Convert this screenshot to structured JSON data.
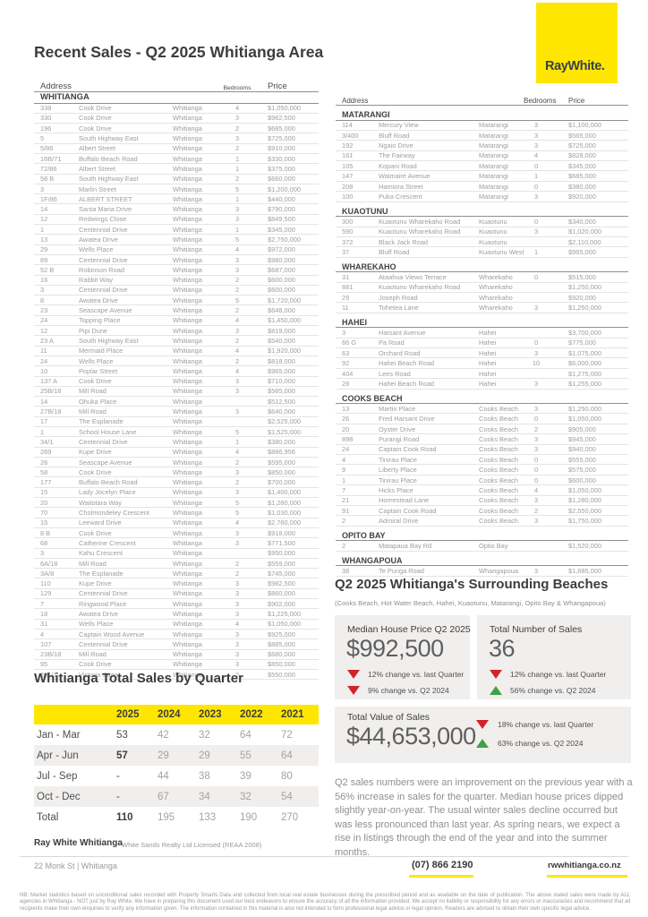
{
  "brand": {
    "logo_text": "RayWhite.",
    "yellow": "#ffe600",
    "red": "#d2232a",
    "green": "#41a048"
  },
  "header": {
    "title": "Recent Sales - Q2 2025 Whitianga Area"
  },
  "sales_table": {
    "headers": {
      "address": "Address",
      "bedrooms": "Bedrooms",
      "price": "Price"
    },
    "left_sections": [
      {
        "name": "WHITIANGA",
        "rows": [
          [
            "338",
            "Cook Drive",
            "Whitianga",
            "4",
            "$1,050,000"
          ],
          [
            "330",
            "Cook Drive",
            "Whitianga",
            "3",
            "$962,500"
          ],
          [
            "196",
            "Cook Drive",
            "Whitianga",
            "2",
            "$685,000"
          ],
          [
            "5",
            "South Highway East",
            "Whitianga",
            "3",
            "$725,000"
          ],
          [
            "5/86",
            "Albert Street",
            "Whitianga",
            "2",
            "$910,000"
          ],
          [
            "16B/71",
            "Buffalo Beach Road",
            "Whitianga",
            "1",
            "$330,000"
          ],
          [
            "72/86",
            "Albert Street",
            "Whitianga",
            "1",
            "$375,000"
          ],
          [
            "58 B",
            "South Highway East",
            "Whitianga",
            "2",
            "$660,000"
          ],
          [
            "3",
            "Marlin Street",
            "Whitianga",
            "5",
            "$1,200,000"
          ],
          [
            "1F/86",
            "ALBERT STREET",
            "Whitianga",
            "1",
            "$440,000"
          ],
          [
            "14",
            "Santa Maria Drive",
            "Whitianga",
            "3",
            "$790,000"
          ],
          [
            "12",
            "Redwings Close",
            "Whitianga",
            "3",
            "$849,500"
          ],
          [
            "1",
            "Centennial Drive",
            "Whitianga",
            "1",
            "$345,000"
          ],
          [
            "13",
            "Awatea Drive",
            "Whitianga",
            "5",
            "$2,750,000"
          ],
          [
            "29",
            "Wells Place",
            "Whitianga",
            "4",
            "$972,000"
          ],
          [
            "89",
            "Centennial Drive",
            "Whitianga",
            "3",
            "$980,000"
          ],
          [
            "52 B",
            "Robinson Road",
            "Whitianga",
            "3",
            "$687,000"
          ],
          [
            "16",
            "Rabbit Way",
            "Whitianga",
            "2",
            "$600,000"
          ],
          [
            "3",
            "Centennial Drive",
            "Whitianga",
            "2",
            "$600,000"
          ],
          [
            "8",
            "Awatea Drive",
            "Whitianga",
            "5",
            "$1,720,000"
          ],
          [
            "23",
            "Seascape Avenue",
            "Whitianga",
            "2",
            "$648,000"
          ],
          [
            "24",
            "Topping Place",
            "Whitianga",
            "4",
            "$1,450,000"
          ],
          [
            "12",
            "Pipi Dune",
            "Whitianga",
            "3",
            "$819,000"
          ],
          [
            "23 A",
            "South Highway East",
            "Whitianga",
            "2",
            "$540,000"
          ],
          [
            "11",
            "Mermaid Place",
            "Whitianga",
            "4",
            "$1,920,000"
          ],
          [
            "24",
            "Wells Place",
            "Whitianga",
            "2",
            "$818,000"
          ],
          [
            "10",
            "Poplar Street",
            "Whitianga",
            "4",
            "$965,000"
          ],
          [
            "137 A",
            "Cook Drive",
            "Whitianga",
            "3",
            "$710,000"
          ],
          [
            "25B/18",
            "Mill Road",
            "Whitianga",
            "3",
            "$585,000"
          ],
          [
            "14",
            "Ohuka Place",
            "Whitianga",
            "",
            "$512,500"
          ],
          [
            "27B/18",
            "Mill Road",
            "Whitianga",
            "3",
            "$640,000"
          ],
          [
            "17",
            "The Esplanade",
            "Whitianga",
            "",
            "$2,525,000"
          ],
          [
            "1",
            "School House Lane",
            "Whitianga",
            "5",
            "$1,525,000"
          ],
          [
            "34/1",
            "Centennial Drive",
            "Whitianga",
            "1",
            "$380,000"
          ],
          [
            "269",
            "Kupe Drive",
            "Whitianga",
            "4",
            "$886,956"
          ],
          [
            "26",
            "Seascape Avenue",
            "Whitianga",
            "2",
            "$595,000"
          ],
          [
            "58",
            "Cook Drive",
            "Whitianga",
            "3",
            "$850,000"
          ],
          [
            "177",
            "Buffalo Beach Road",
            "Whitianga",
            "2",
            "$700,000"
          ],
          [
            "15",
            "Lady Jocelyn Place",
            "Whitianga",
            "3",
            "$1,400,000"
          ],
          [
            "20",
            "Waitotara Way",
            "Whitianga",
            "5",
            "$1,280,000"
          ],
          [
            "70",
            "Cholmondeley Crescent",
            "Whitianga",
            "5",
            "$1,030,000"
          ],
          [
            "15",
            "Leeward Drive",
            "Whitianga",
            "4",
            "$2,760,000"
          ],
          [
            "8 B",
            "Cook Drive",
            "Whitianga",
            "3",
            "$918,000"
          ],
          [
            "68",
            "Catherine Crescent",
            "Whitianga",
            "3",
            "$771,500"
          ],
          [
            "3",
            "Kahu Crescent",
            "Whitianga",
            "",
            "$950,000"
          ],
          [
            "6A/18",
            "Mill Road",
            "Whitianga",
            "2",
            "$559,000"
          ],
          [
            "3A/8",
            "The Esplanade",
            "Whitianga",
            "2",
            "$745,000"
          ],
          [
            "110",
            "Kupe Drive",
            "Whitianga",
            "3",
            "$982,500"
          ],
          [
            "129",
            "Centennial Drive",
            "Whitianga",
            "3",
            "$860,000"
          ],
          [
            "7",
            "Ringwood Place",
            "Whitianga",
            "3",
            "$902,000"
          ],
          [
            "18",
            "Awatea Drive",
            "Whitianga",
            "3",
            "$1,225,000"
          ],
          [
            "31",
            "Wells Place",
            "Whitianga",
            "4",
            "$1,050,000"
          ],
          [
            "4",
            "Captain Wood Avenue",
            "Whitianga",
            "3",
            "$925,000"
          ],
          [
            "107",
            "Centennial Drive",
            "Whitianga",
            "3",
            "$885,000"
          ],
          [
            "23B/18",
            "Mill Road",
            "Whitianga",
            "3",
            "$680,000"
          ],
          [
            "95",
            "Cook Drive",
            "Whitianga",
            "3",
            "$850,000"
          ],
          [
            "201/1",
            "Victoria Street",
            "Whitianga",
            "2",
            "$550,000"
          ]
        ]
      }
    ],
    "right_sections": [
      {
        "name": "MATARANGI",
        "rows": [
          [
            "114",
            "Mercury View",
            "Matarangi",
            "3",
            "$1,100,000"
          ],
          [
            "3/400",
            "Bluff Road",
            "Matarangi",
            "3",
            "$565,000"
          ],
          [
            "192",
            "Ngaio Drive",
            "Matarangi",
            "3",
            "$725,000"
          ],
          [
            "161",
            "The Fairway",
            "Matarangi",
            "4",
            "$828,000"
          ],
          [
            "105",
            "Kopani Road",
            "Matarangi",
            "0",
            "$345,000"
          ],
          [
            "147",
            "Waimaire Avenue",
            "Matarangi",
            "1",
            "$685,000"
          ],
          [
            "208",
            "Hamiora Street",
            "Matarangi",
            "0",
            "$380,000"
          ],
          [
            "100",
            "Puka Crescent",
            "Matarangi",
            "3",
            "$920,000"
          ]
        ]
      },
      {
        "name": "KUAOTUNU",
        "rows": [
          [
            "300",
            "Kuaotunu Wharekaho Road",
            "Kuaotunu",
            "0",
            "$340,000"
          ],
          [
            "590",
            "Kuaotunu Wharekaho Road",
            "Kuaotunu",
            "3",
            "$1,020,000"
          ],
          [
            "372",
            "Black Jack Road",
            "Kuaotunu",
            "",
            "$2,110,000"
          ],
          [
            "37",
            "Bluff Road",
            "Kuaotunu West",
            "1",
            "$965,000"
          ]
        ]
      },
      {
        "name": "WHAREKAHO",
        "rows": [
          [
            "31",
            "Ataahua Views Terrace",
            "Wharekaho",
            "0",
            "$515,000"
          ],
          [
            "881",
            "Kuaotunu Wharekaho Road",
            "Wharekaho",
            "",
            "$1,250,000"
          ],
          [
            "29",
            "Joseph Road",
            "Wharekaho",
            "",
            "$920,000"
          ],
          [
            "11",
            "Tohetea Lane",
            "Wharekaho",
            "3",
            "$1,250,000"
          ]
        ]
      },
      {
        "name": "HAHEI",
        "rows": [
          [
            "3",
            "Harsant Avenue",
            "Hahei",
            "",
            "$3,700,000"
          ],
          [
            "66 G",
            "Pa Road",
            "Hahei",
            "0",
            "$775,000"
          ],
          [
            "63",
            "Orchard Road",
            "Hahei",
            "3",
            "$1,075,000"
          ],
          [
            "92",
            "Hahei Beach Road",
            "Hahei",
            "10",
            "$6,000,000"
          ],
          [
            "404",
            "Lees Road",
            "Hahei",
            "",
            "$1,275,000"
          ],
          [
            "28",
            "Hahei Beach Road",
            "Hahei",
            "3",
            "$1,255,000"
          ]
        ]
      },
      {
        "name": "COOKS BEACH",
        "rows": [
          [
            "13",
            "Martin Place",
            "Cooks Beach",
            "3",
            "$1,250,000"
          ],
          [
            "26",
            "Fred Harsant Drive",
            "Cooks Beach",
            "0",
            "$1,050,000"
          ],
          [
            "20",
            "Oyster Drive",
            "Cooks Beach",
            "2",
            "$905,000"
          ],
          [
            "898",
            "Purangi Road",
            "Cooks Beach",
            "3",
            "$945,000"
          ],
          [
            "24",
            "Captain Cook Road",
            "Cooks Beach",
            "3",
            "$940,000"
          ],
          [
            "4",
            "Tinirau Place",
            "Cooks Beach",
            "0",
            "$555,000"
          ],
          [
            "9",
            "Liberty Place",
            "Cooks Beach",
            "0",
            "$575,000"
          ],
          [
            "1",
            "Tinirau Place",
            "Cooks Beach",
            "0",
            "$600,000"
          ],
          [
            "7",
            "Hicks Place",
            "Cooks Beach",
            "4",
            "$1,050,000"
          ],
          [
            "21",
            "Homestead Lane",
            "Cooks Beach",
            "3",
            "$1,280,000"
          ],
          [
            "91",
            "Captain Cook Road",
            "Cooks Beach",
            "2",
            "$2,550,000"
          ],
          [
            "2",
            "Admiral Drive",
            "Cooks Beach",
            "3",
            "$1,750,000"
          ]
        ]
      },
      {
        "name": "OPITO BAY",
        "rows": [
          [
            "2",
            "Matapaua Bay Rd",
            "Optio Bay",
            "",
            "$1,520,000"
          ]
        ]
      },
      {
        "name": "WHANGAPOUA",
        "rows": [
          [
            "38",
            "Te Punga Road",
            "Whangapoua",
            "3",
            "$1,685,000"
          ]
        ]
      }
    ]
  },
  "quarter_table": {
    "title": "Whitianga Total Sales by Quarter",
    "columns": [
      "",
      "2025",
      "2024",
      "2023",
      "2022",
      "2021"
    ],
    "rows": [
      {
        "label": "Jan - Mar",
        "values": [
          "53",
          "42",
          "32",
          "64",
          "72"
        ],
        "emphasis": false
      },
      {
        "label": "Apr - Jun",
        "values": [
          "57",
          "29",
          "29",
          "55",
          "64"
        ],
        "emphasis": true
      },
      {
        "label": "Jul - Sep",
        "values": [
          "-",
          "44",
          "38",
          "39",
          "80"
        ],
        "emphasis": false
      },
      {
        "label": "Oct - Dec",
        "values": [
          "-",
          "67",
          "34",
          "32",
          "54"
        ],
        "emphasis": false
      },
      {
        "label": "Total",
        "values": [
          "110",
          "195",
          "133",
          "190",
          "270"
        ],
        "emphasis": true
      }
    ]
  },
  "beaches": {
    "title": "Q2 2025 Whitianga's Surrounding Beaches",
    "subtitle": "(Cooks Beach, Hot Water Beach, Hahei, Kuaotunu, Matarangi, Opito Bay & Whangapoua)",
    "median": {
      "label": "Median House Price Q2 2025",
      "value": "$992,500",
      "changes": [
        {
          "dir": "down",
          "text": "12% change vs. last Quarter"
        },
        {
          "dir": "down",
          "text": "9% change vs. Q2 2024"
        }
      ]
    },
    "count": {
      "label": "Total Number of Sales",
      "value": "36",
      "changes": [
        {
          "dir": "down",
          "text": "12% change vs. last Quarter"
        },
        {
          "dir": "up",
          "text": "56% change vs. Q2 2024"
        }
      ]
    },
    "total_value": {
      "label": "Total Value of Sales",
      "value": "$44,653,000",
      "changes": [
        {
          "dir": "down",
          "text": "18% change vs. last Quarter"
        },
        {
          "dir": "up",
          "text": "63% change vs. Q2 2024"
        }
      ]
    },
    "commentary": "Q2 sales numbers were an improvement on the previous year with a 56% increase in sales for the quarter.  Median house prices dipped slightly year-on-year. The usual winter sales decline occurred but was less pronounced than last year. As spring nears, we expect a rise in listings through the end of the year and into the summer months."
  },
  "footer": {
    "office": "Ray White Whitianga",
    "company": "White Sands Realty Ltd Licensed (REAA 2008)",
    "address": "22 Monk St | Whitianga",
    "phone": "(07) 866 2190",
    "website": "rwwhitianga.co.nz",
    "disclaimer": "NB: Market statistics based on unconditional sales recorded with Property Smarts Data and collected from local real estate businesses during the prescribed period and as available on the date of publication. The above stated sales were made by ALL agencies in Whitianga - NOT just by Ray White. We have in preparing this document used our best endeavors to ensure the accuracy of all the information provided. We accept no liability or responsibility for any errors or inaccuracies and recommend that all recipients make their own enquiries to verify any information given. The information contained in this material is also not intended to form professional legal advice or legal opinion. Readers are advised to obtain their own specific legal advice."
  }
}
